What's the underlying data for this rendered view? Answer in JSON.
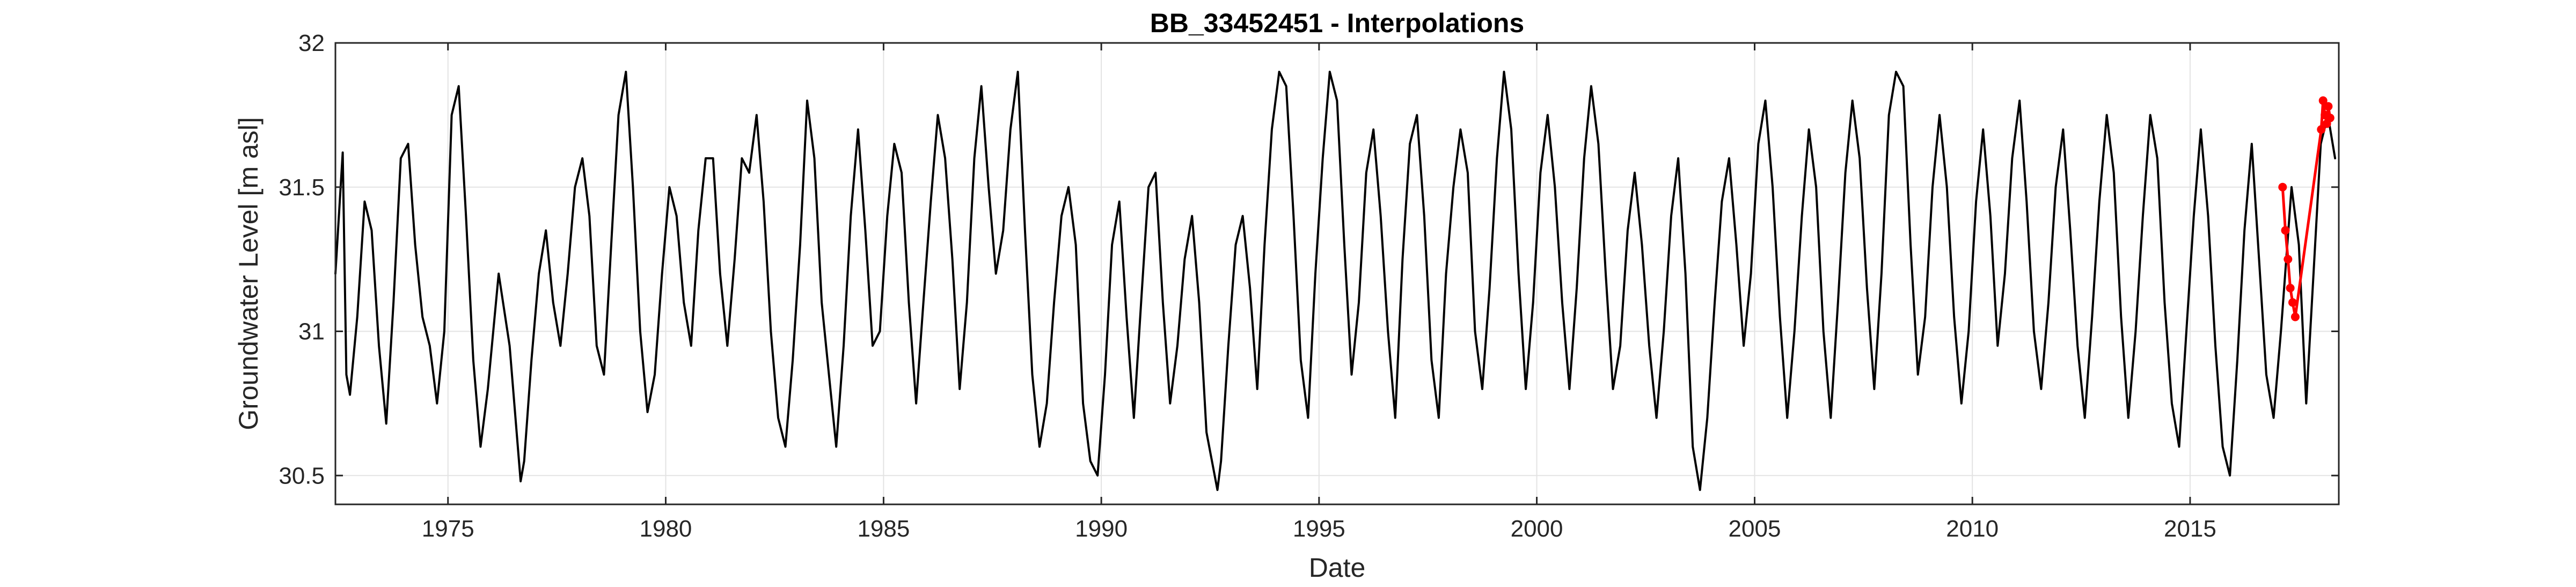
{
  "chart_data": {
    "type": "line",
    "title": "BB_33452451 - Interpolations",
    "xlabel": "Date",
    "ylabel": "Groundwater Level [m asl]",
    "xlim": [
      "1972-06-01",
      "2018-06-01"
    ],
    "ylim": [
      30.4,
      32.0
    ],
    "x_ticks": [
      {
        "date": "1975-01-01",
        "label": "1975"
      },
      {
        "date": "1980-01-01",
        "label": "1980"
      },
      {
        "date": "1985-01-01",
        "label": "1985"
      },
      {
        "date": "1990-01-01",
        "label": "1990"
      },
      {
        "date": "1995-01-01",
        "label": "1995"
      },
      {
        "date": "2000-01-01",
        "label": "2000"
      },
      {
        "date": "2005-01-01",
        "label": "2005"
      },
      {
        "date": "2010-01-01",
        "label": "2010"
      },
      {
        "date": "2015-01-01",
        "label": "2015"
      }
    ],
    "y_ticks": [
      {
        "value": 30.5,
        "label": "30.5"
      },
      {
        "value": 31.0,
        "label": "31"
      },
      {
        "value": 31.5,
        "label": "31.5"
      },
      {
        "value": 32.0,
        "label": "32"
      }
    ],
    "grid": true,
    "legend": "none",
    "series": [
      {
        "color": "#000000",
        "style": "line",
        "x": [
          "1972-06-01",
          "1972-08-01",
          "1972-09-01",
          "1972-10-01",
          "1972-12-01",
          "1973-02-01",
          "1973-04-01",
          "1973-06-01",
          "1973-08-01",
          "1973-10-01",
          "1973-12-01",
          "1974-02-01",
          "1974-04-01",
          "1974-06-01",
          "1974-08-01",
          "1974-10-01",
          "1974-12-01",
          "1975-02-01",
          "1975-04-01",
          "1975-06-01",
          "1975-08-01",
          "1975-10-01",
          "1975-12-01",
          "1976-03-01",
          "1976-06-01",
          "1976-09-01",
          "1976-10-01",
          "1976-12-01",
          "1977-02-01",
          "1977-04-01",
          "1977-06-01",
          "1977-08-01",
          "1977-10-01",
          "1977-12-01",
          "1978-02-01",
          "1978-04-01",
          "1978-06-01",
          "1978-08-01",
          "1978-10-01",
          "1978-12-01",
          "1979-02-01",
          "1979-04-01",
          "1979-06-01",
          "1979-08-01",
          "1979-10-01",
          "1979-12-01",
          "1980-02-01",
          "1980-04-01",
          "1980-06-01",
          "1980-08-01",
          "1980-10-01",
          "1980-12-01",
          "1981-02-01",
          "1981-04-01",
          "1981-06-01",
          "1981-08-01",
          "1981-10-01",
          "1981-12-01",
          "1982-02-01",
          "1982-04-01",
          "1982-06-01",
          "1982-08-01",
          "1982-10-01",
          "1982-12-01",
          "1983-02-01",
          "1983-04-01",
          "1983-06-01",
          "1983-08-01",
          "1983-10-01",
          "1983-12-01",
          "1984-02-01",
          "1984-04-01",
          "1984-06-01",
          "1984-08-01",
          "1984-10-01",
          "1984-12-01",
          "1985-02-01",
          "1985-04-01",
          "1985-06-01",
          "1985-08-01",
          "1985-10-01",
          "1985-12-01",
          "1986-02-01",
          "1986-04-01",
          "1986-06-01",
          "1986-08-01",
          "1986-10-01",
          "1986-12-01",
          "1987-02-01",
          "1987-04-01",
          "1987-06-01",
          "1987-08-01",
          "1987-10-01",
          "1987-12-01",
          "1988-02-01",
          "1988-04-01",
          "1988-06-01",
          "1988-08-01",
          "1988-10-01",
          "1988-12-01",
          "1989-02-01",
          "1989-04-01",
          "1989-06-01",
          "1989-08-01",
          "1989-10-01",
          "1989-12-01",
          "1990-02-01",
          "1990-04-01",
          "1990-06-01",
          "1990-08-01",
          "1990-10-01",
          "1990-12-01",
          "1991-02-01",
          "1991-04-01",
          "1991-06-01",
          "1991-08-01",
          "1991-10-01",
          "1991-12-01",
          "1992-02-01",
          "1992-04-01",
          "1992-06-01",
          "1992-09-01",
          "1992-10-01",
          "1992-12-01",
          "1993-02-01",
          "1993-04-01",
          "1993-06-01",
          "1993-08-01",
          "1993-10-01",
          "1993-12-01",
          "1994-02-01",
          "1994-04-01",
          "1994-06-01",
          "1994-08-01",
          "1994-10-01",
          "1994-12-01",
          "1995-02-01",
          "1995-04-01",
          "1995-06-01",
          "1995-08-01",
          "1995-10-01",
          "1995-12-01",
          "1996-02-01",
          "1996-04-01",
          "1996-06-01",
          "1996-08-01",
          "1996-10-01",
          "1996-12-01",
          "1997-02-01",
          "1997-04-01",
          "1997-06-01",
          "1997-08-01",
          "1997-10-01",
          "1997-12-01",
          "1998-02-01",
          "1998-04-01",
          "1998-06-01",
          "1998-08-01",
          "1998-10-01",
          "1998-12-01",
          "1999-02-01",
          "1999-04-01",
          "1999-06-01",
          "1999-08-01",
          "1999-10-01",
          "1999-12-01",
          "2000-02-01",
          "2000-04-01",
          "2000-06-01",
          "2000-08-01",
          "2000-10-01",
          "2000-12-01",
          "2001-02-01",
          "2001-04-01",
          "2001-06-01",
          "2001-08-01",
          "2001-10-01",
          "2001-12-01",
          "2002-02-01",
          "2002-04-01",
          "2002-06-01",
          "2002-08-01",
          "2002-10-01",
          "2002-12-01",
          "2003-02-01",
          "2003-04-01",
          "2003-06-01",
          "2003-08-01",
          "2003-10-01",
          "2003-12-01",
          "2004-02-01",
          "2004-04-01",
          "2004-06-01",
          "2004-08-01",
          "2004-10-01",
          "2004-12-01",
          "2005-02-01",
          "2005-04-01",
          "2005-06-01",
          "2005-08-01",
          "2005-10-01",
          "2005-12-01",
          "2006-02-01",
          "2006-04-01",
          "2006-06-01",
          "2006-08-01",
          "2006-10-01",
          "2006-12-01",
          "2007-02-01",
          "2007-04-01",
          "2007-06-01",
          "2007-08-01",
          "2007-10-01",
          "2007-12-01",
          "2008-02-01",
          "2008-04-01",
          "2008-06-01",
          "2008-08-01",
          "2008-10-01",
          "2008-12-01",
          "2009-02-01",
          "2009-04-01",
          "2009-06-01",
          "2009-08-01",
          "2009-10-01",
          "2009-12-01",
          "2010-02-01",
          "2010-04-01",
          "2010-06-01",
          "2010-08-01",
          "2010-10-01",
          "2010-12-01",
          "2011-02-01",
          "2011-04-01",
          "2011-06-01",
          "2011-08-01",
          "2011-10-01",
          "2011-12-01",
          "2012-02-01",
          "2012-04-01",
          "2012-06-01",
          "2012-08-01",
          "2012-10-01",
          "2012-12-01",
          "2013-02-01",
          "2013-04-01",
          "2013-06-01",
          "2013-08-01",
          "2013-10-01",
          "2013-12-01",
          "2014-02-01",
          "2014-04-01",
          "2014-06-01",
          "2014-08-01",
          "2014-10-01",
          "2014-12-01",
          "2015-02-01",
          "2015-04-01",
          "2015-06-01",
          "2015-08-01",
          "2015-10-01",
          "2015-12-01",
          "2016-02-01",
          "2016-04-01",
          "2016-06-01",
          "2016-08-01",
          "2016-10-01",
          "2016-12-01",
          "2017-02-01",
          "2017-05-01",
          "2017-07-01",
          "2017-09-01",
          "2017-11-01",
          "2018-01-01",
          "2018-03-01",
          "2018-05-01"
        ],
        "y": [
          31.2,
          31.62,
          30.85,
          30.78,
          31.05,
          31.45,
          31.35,
          30.95,
          30.68,
          31.1,
          31.6,
          31.65,
          31.3,
          31.05,
          30.95,
          30.75,
          31.0,
          31.75,
          31.85,
          31.4,
          30.9,
          30.6,
          30.8,
          31.2,
          30.95,
          30.48,
          30.55,
          30.9,
          31.2,
          31.35,
          31.1,
          30.95,
          31.2,
          31.5,
          31.6,
          31.4,
          30.95,
          30.85,
          31.3,
          31.75,
          31.9,
          31.5,
          31.0,
          30.72,
          30.85,
          31.2,
          31.5,
          31.4,
          31.1,
          30.95,
          31.35,
          31.6,
          31.6,
          31.2,
          30.95,
          31.25,
          31.6,
          31.55,
          31.75,
          31.45,
          31.0,
          30.7,
          30.6,
          30.9,
          31.3,
          31.8,
          31.6,
          31.1,
          30.85,
          30.6,
          30.95,
          31.4,
          31.7,
          31.35,
          30.95,
          31.0,
          31.4,
          31.65,
          31.55,
          31.1,
          30.75,
          31.1,
          31.45,
          31.75,
          31.6,
          31.25,
          30.8,
          31.1,
          31.6,
          31.85,
          31.5,
          31.2,
          31.35,
          31.7,
          31.9,
          31.35,
          30.85,
          30.6,
          30.75,
          31.1,
          31.4,
          31.5,
          31.3,
          30.75,
          30.55,
          30.5,
          30.85,
          31.3,
          31.45,
          31.05,
          30.7,
          31.1,
          31.5,
          31.55,
          31.1,
          30.75,
          30.95,
          31.25,
          31.4,
          31.1,
          30.65,
          30.45,
          30.55,
          30.95,
          31.3,
          31.4,
          31.15,
          30.8,
          31.3,
          31.7,
          31.9,
          31.85,
          31.4,
          30.9,
          30.7,
          31.2,
          31.6,
          31.9,
          31.8,
          31.3,
          30.85,
          31.1,
          31.55,
          31.7,
          31.4,
          31.0,
          30.7,
          31.25,
          31.65,
          31.75,
          31.4,
          30.9,
          30.7,
          31.2,
          31.5,
          31.7,
          31.55,
          31.0,
          30.8,
          31.15,
          31.6,
          31.9,
          31.7,
          31.2,
          30.8,
          31.1,
          31.55,
          31.75,
          31.5,
          31.1,
          30.8,
          31.15,
          31.6,
          31.85,
          31.65,
          31.2,
          30.8,
          30.95,
          31.35,
          31.55,
          31.3,
          30.95,
          30.7,
          31.0,
          31.4,
          31.6,
          31.2,
          30.6,
          30.45,
          30.7,
          31.1,
          31.45,
          31.6,
          31.3,
          30.95,
          31.2,
          31.65,
          31.8,
          31.5,
          31.05,
          30.7,
          31.0,
          31.4,
          31.7,
          31.5,
          31.0,
          30.7,
          31.1,
          31.55,
          31.8,
          31.6,
          31.15,
          30.8,
          31.2,
          31.75,
          31.9,
          31.85,
          31.3,
          30.85,
          31.05,
          31.5,
          31.75,
          31.5,
          31.05,
          30.75,
          31.0,
          31.45,
          31.7,
          31.4,
          30.95,
          31.2,
          31.6,
          31.8,
          31.45,
          31.0,
          30.8,
          31.1,
          31.5,
          31.7,
          31.35,
          30.95,
          30.7,
          31.05,
          31.45,
          31.75,
          31.55,
          31.05,
          30.7,
          31.0,
          31.4,
          31.75,
          31.6,
          31.1,
          30.75,
          30.6,
          31.0,
          31.4,
          31.7,
          31.4,
          30.95,
          30.6,
          30.5,
          30.9,
          31.35,
          31.65,
          31.25,
          30.85,
          30.7,
          31.0,
          31.5,
          31.3,
          30.75,
          31.2,
          31.65,
          31.75,
          31.6
        ]
      },
      {
        "color": "#ff0000",
        "style": "markers+line",
        "x": [
          "2017-02-15",
          "2017-03-10",
          "2017-04-01",
          "2017-04-20",
          "2017-05-10",
          "2017-06-01",
          "2018-01-05",
          "2018-01-20",
          "2018-02-05",
          "2018-02-20",
          "2018-03-05",
          "2018-03-20"
        ],
        "y": [
          31.5,
          31.35,
          31.25,
          31.15,
          31.1,
          31.05,
          31.7,
          31.8,
          31.75,
          31.72,
          31.78,
          31.74
        ]
      }
    ]
  }
}
